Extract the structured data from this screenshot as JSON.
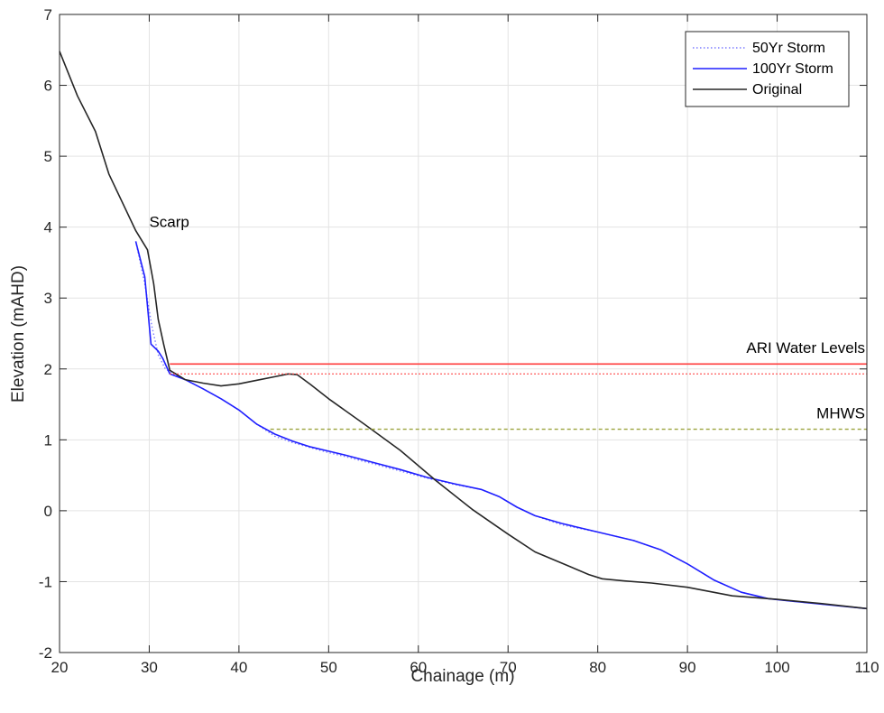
{
  "chart_data": {
    "type": "line",
    "title": "",
    "xlabel": "Chainage (m)",
    "ylabel": "Elevation (mAHD)",
    "xlim": [
      20,
      110
    ],
    "ylim": [
      -2,
      7
    ],
    "xticks": [
      20,
      30,
      40,
      50,
      60,
      70,
      80,
      90,
      100,
      110
    ],
    "yticks": [
      -2,
      -1,
      0,
      1,
      2,
      3,
      4,
      5,
      6,
      7
    ],
    "grid": true,
    "legend_position": "top-right",
    "series": [
      {
        "name": "50Yr Storm",
        "color": "#7b7bff",
        "style": "dotted",
        "points": [
          [
            28.5,
            3.8
          ],
          [
            29.5,
            3.2
          ],
          [
            30.3,
            2.6
          ],
          [
            31.0,
            2.2
          ],
          [
            31.8,
            2.0
          ],
          [
            32.5,
            1.95
          ],
          [
            34,
            1.85
          ],
          [
            36,
            1.72
          ],
          [
            38,
            1.58
          ],
          [
            40,
            1.42
          ],
          [
            42,
            1.22
          ],
          [
            44,
            1.05
          ],
          [
            46,
            0.96
          ],
          [
            48,
            0.89
          ],
          [
            50,
            0.82
          ],
          [
            52,
            0.76
          ],
          [
            55,
            0.66
          ],
          [
            58,
            0.56
          ],
          [
            61,
            0.46
          ],
          [
            64,
            0.37
          ],
          [
            67,
            0.3
          ],
          [
            69,
            0.2
          ],
          [
            71,
            0.05
          ],
          [
            73,
            -0.07
          ],
          [
            76,
            -0.2
          ],
          [
            80,
            -0.3
          ],
          [
            84,
            -0.42
          ],
          [
            87,
            -0.55
          ],
          [
            90,
            -0.75
          ],
          [
            93,
            -0.98
          ],
          [
            96,
            -1.15
          ],
          [
            99,
            -1.24
          ],
          [
            102,
            -1.28
          ],
          [
            110,
            -1.38
          ]
        ]
      },
      {
        "name": "100Yr Storm",
        "color": "#1f1fff",
        "style": "solid",
        "points": [
          [
            28.5,
            3.8
          ],
          [
            29.5,
            3.3
          ],
          [
            30.2,
            2.35
          ],
          [
            31.0,
            2.25
          ],
          [
            31.5,
            2.15
          ],
          [
            32.3,
            1.93
          ],
          [
            34,
            1.85
          ],
          [
            36,
            1.72
          ],
          [
            38,
            1.58
          ],
          [
            40,
            1.42
          ],
          [
            42,
            1.22
          ],
          [
            44,
            1.08
          ],
          [
            46,
            0.98
          ],
          [
            48,
            0.9
          ],
          [
            50,
            0.84
          ],
          [
            52,
            0.78
          ],
          [
            55,
            0.68
          ],
          [
            58,
            0.58
          ],
          [
            61,
            0.47
          ],
          [
            64,
            0.38
          ],
          [
            67,
            0.3
          ],
          [
            69,
            0.2
          ],
          [
            71,
            0.05
          ],
          [
            73,
            -0.07
          ],
          [
            76,
            -0.18
          ],
          [
            80,
            -0.3
          ],
          [
            84,
            -0.42
          ],
          [
            87,
            -0.55
          ],
          [
            90,
            -0.75
          ],
          [
            93,
            -0.98
          ],
          [
            96,
            -1.15
          ],
          [
            99,
            -1.24
          ],
          [
            102,
            -1.28
          ],
          [
            110,
            -1.38
          ]
        ]
      },
      {
        "name": "Original",
        "color": "#262626",
        "style": "solid",
        "points": [
          [
            20,
            6.48
          ],
          [
            22,
            5.85
          ],
          [
            24,
            5.35
          ],
          [
            25.5,
            4.75
          ],
          [
            27,
            4.35
          ],
          [
            28.5,
            3.95
          ],
          [
            29.8,
            3.68
          ],
          [
            30.5,
            3.2
          ],
          [
            31,
            2.7
          ],
          [
            31.6,
            2.35
          ],
          [
            32.3,
            1.98
          ],
          [
            34,
            1.85
          ],
          [
            36,
            1.8
          ],
          [
            38,
            1.76
          ],
          [
            40,
            1.79
          ],
          [
            42,
            1.84
          ],
          [
            44,
            1.89
          ],
          [
            45.5,
            1.93
          ],
          [
            46.5,
            1.92
          ],
          [
            48,
            1.78
          ],
          [
            50,
            1.58
          ],
          [
            54,
            1.22
          ],
          [
            58,
            0.85
          ],
          [
            62,
            0.42
          ],
          [
            66,
            0.02
          ],
          [
            70,
            -0.33
          ],
          [
            73,
            -0.58
          ],
          [
            76,
            -0.74
          ],
          [
            79,
            -0.9
          ],
          [
            80.5,
            -0.96
          ],
          [
            83,
            -0.99
          ],
          [
            86,
            -1.02
          ],
          [
            90,
            -1.08
          ],
          [
            95,
            -1.2
          ],
          [
            100,
            -1.25
          ],
          [
            105,
            -1.31
          ],
          [
            110,
            -1.38
          ]
        ]
      },
      {
        "name": "ARI Water Level (upper)",
        "color": "#ff3b3b",
        "style": "solid",
        "legend": false,
        "points": [
          [
            32.3,
            2.07
          ],
          [
            110,
            2.07
          ]
        ]
      },
      {
        "name": "ARI Water Level (lower)",
        "color": "#ff3b3b",
        "style": "dotted",
        "legend": false,
        "points": [
          [
            32.3,
            1.93
          ],
          [
            110,
            1.93
          ]
        ]
      },
      {
        "name": "MHWS",
        "color": "#9aa23a",
        "style": "dashed",
        "legend": false,
        "points": [
          [
            43.5,
            1.15
          ],
          [
            110,
            1.15
          ]
        ]
      }
    ],
    "annotations": [
      {
        "text": "Scarp",
        "x": 29.8,
        "y": 3.95
      },
      {
        "text": "ARI Water Levels",
        "x": 110,
        "y": 2.2
      },
      {
        "text": "MHWS",
        "x": 110,
        "y": 1.28
      }
    ]
  }
}
